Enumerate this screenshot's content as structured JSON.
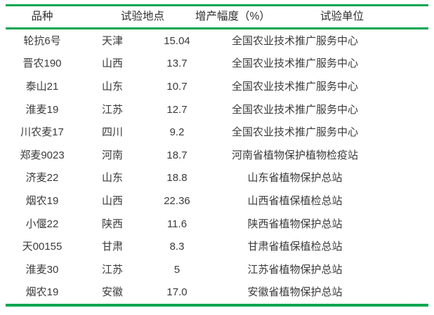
{
  "table": {
    "headers": [
      "品种",
      "试验地点",
      "增产幅度（%）",
      "试验单位"
    ],
    "rows": [
      {
        "variety": "轮抗6号",
        "location": "天津",
        "increase": "15.04",
        "unit": "全国农业技术推广服务中心"
      },
      {
        "variety": "晋农190",
        "location": "山西",
        "increase": "13.7",
        "unit": "全国农业技术推广服务中心"
      },
      {
        "variety": "泰山21",
        "location": "山东",
        "increase": "10.7",
        "unit": "全国农业技术推广服务中心"
      },
      {
        "variety": "淮麦19",
        "location": "江苏",
        "increase": "12.7",
        "unit": "全国农业技术推广服务中心"
      },
      {
        "variety": "川农麦17",
        "location": "四川",
        "increase": "9.2",
        "unit": "全国农业技术推广服务中心"
      },
      {
        "variety": "郑麦9023",
        "location": "河南",
        "increase": "18.7",
        "unit": "河南省植物保护植物检疫站"
      },
      {
        "variety": "济麦22",
        "location": "山东",
        "increase": "18.8",
        "unit": "山东省植物保护总站"
      },
      {
        "variety": "烟农19",
        "location": "山西",
        "increase": "22.36",
        "unit": "山西省植保植检总站"
      },
      {
        "variety": "小偃22",
        "location": "陕西",
        "increase": "11.6",
        "unit": "陕西省植物保护总站"
      },
      {
        "variety": "天00155",
        "location": "甘肃",
        "increase": "8.3",
        "unit": "甘肃省植保植检总站"
      },
      {
        "variety": "淮麦30",
        "location": "江苏",
        "increase": "5",
        "unit": "江苏省植物保护总站"
      },
      {
        "variety": "烟农19",
        "location": "安徽",
        "increase": "17.0",
        "unit": "安徽省植物保护总站"
      }
    ],
    "colors": {
      "rule": "#00a651",
      "text": "#3a3a3a",
      "header_text": "#2f2f2f",
      "background": "#ffffff"
    }
  }
}
